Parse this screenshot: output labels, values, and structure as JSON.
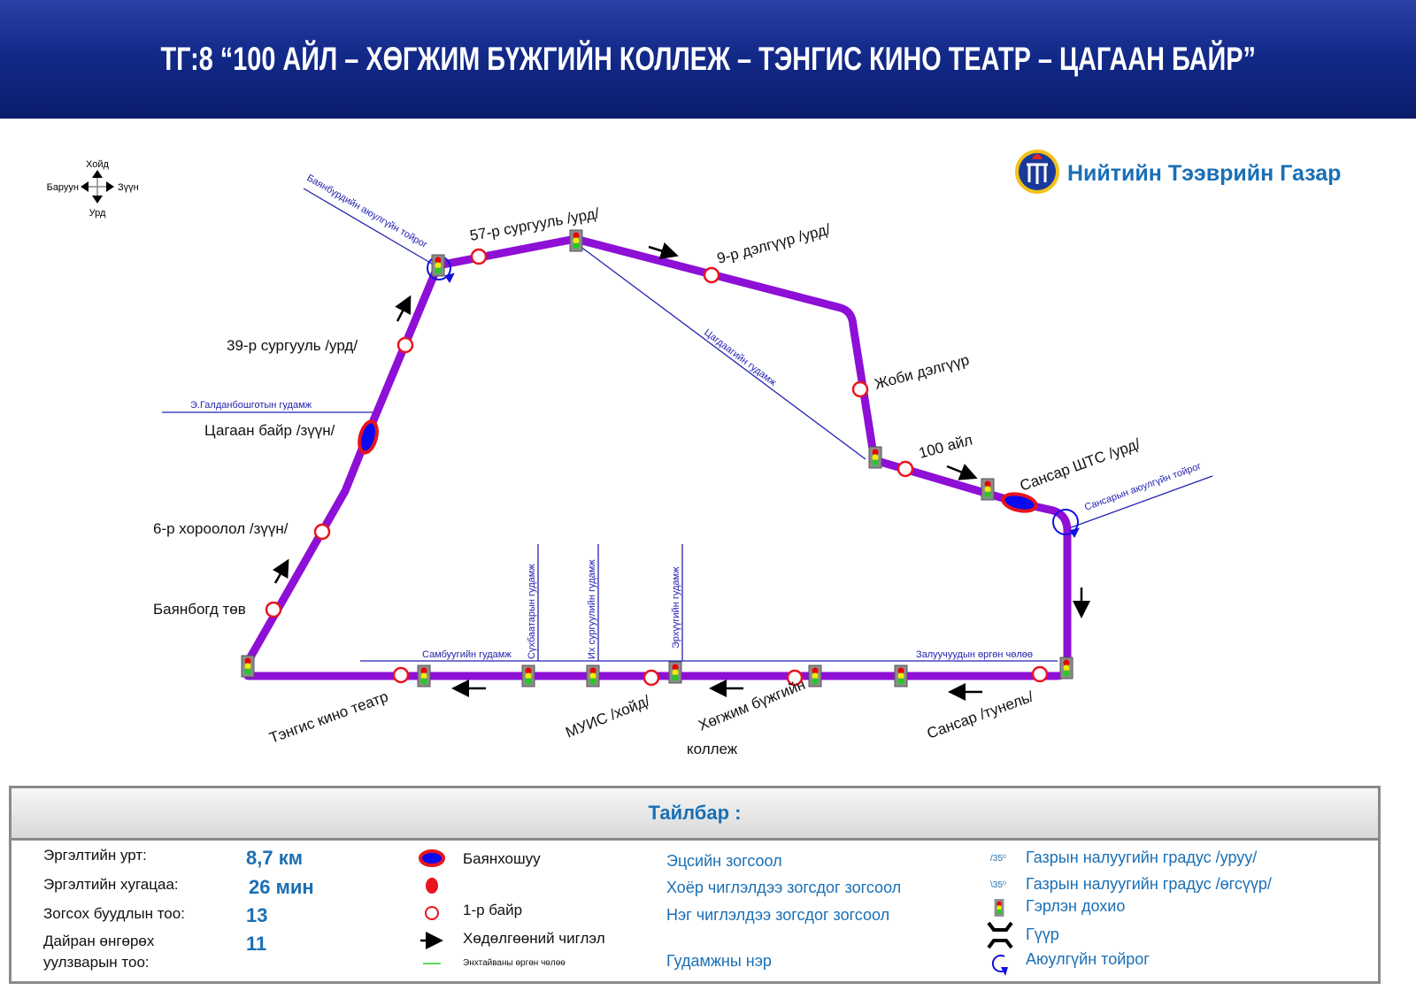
{
  "header": {
    "title": "ТГ:8 “100 АЙЛ – ХӨГЖИМ БҮЖГИЙН КОЛЛЕЖ – ТЭНГИС КИНО ТЕАТР – ЦАГААН БАЙР”"
  },
  "logo": {
    "text": "Нийтийн Тээврийн Газар"
  },
  "compass": {
    "north": "Хойд",
    "south": "Урд",
    "west": "Баруун",
    "east": "Зүүн"
  },
  "colors": {
    "route": "#8e0fd6",
    "street": "#2323b0",
    "stop_ring": "#e8141e",
    "terminal_fill": "#0a0af0",
    "header": "#132a8a",
    "accent": "#1a6fb5"
  },
  "stops": {
    "s57": "57-р сургууль /урд/",
    "s9": "9-р дэлгүүр /урд/",
    "joby": "Жоби дэлгүүр",
    "ail100": "100 айл",
    "sansar_shts": "Сансар ШТС /урд/",
    "s39": "39-р сургууль /урд/",
    "tsagaan": "Цагаан байр /зүүн/",
    "khoroolol6": "6-р хороолол /зүүн/",
    "bayanbogd": "Баянбогд төв",
    "tengis": "Тэнгис кино театр",
    "muis": "МУИС /хойд/",
    "khugjim1": "Хөгжим бүжгийн",
    "khugjim2": "коллеж",
    "sansar_tunel": "Сансар /тунель/"
  },
  "streets": {
    "bayanburd": "Баянбүрдийн аюулгүйн тойрог",
    "galdan": "Э.Галданбошготын гудамж",
    "tsagdaa": "Цагдаагийн гудамж",
    "sansar_round": "Сансарын аюулгүйн тойрог",
    "sambuu": "Самбуугийн гудамж",
    "sukhbaatar": "Сүхбаатарын гудамж",
    "ikh": "Их сургуулийн гудамж",
    "erkhuu": "Эрхүүгийн гудамж",
    "zaluuchuud": "Залуучуудын өргөн чөлөө"
  },
  "legend": {
    "title": "Тайлбар :",
    "stats": [
      {
        "label": "Эргэлтийн урт:",
        "value": "8,7 км"
      },
      {
        "label": "Эргэлтийн хугацаа:",
        "value": "26 мин"
      },
      {
        "label": "Зогсох буудлын тоо:",
        "value": "13"
      },
      {
        "label": "Дайран өнгөрөх",
        "label2": "уулзварын тоо:",
        "value": "11"
      }
    ],
    "symbols": {
      "terminal": "Баянхошуу",
      "first": "1-р байр",
      "direction": "Хөдөлгөөний чиглэл",
      "avenue": "Энхтайваны өргөн чөлөө"
    },
    "stop_types": [
      "Эцсийн зогсоол",
      "Хоёр чиглэлдээ зогсдог зогсоол",
      "Нэг чиглэлдээ зогсдог зогсоол",
      "Гудамжны нэр"
    ],
    "right": [
      {
        "mark": "/35⁰",
        "label": "Газрын налуугийн градус /уруу/"
      },
      {
        "mark": "\\35⁰",
        "label": "Газрын налуугийн градус /өгсүүр/"
      },
      {
        "label": "Гэрлэн дохио"
      },
      {
        "label": "Гүүр"
      },
      {
        "label": "Аюулгүйн тойрог"
      }
    ]
  }
}
